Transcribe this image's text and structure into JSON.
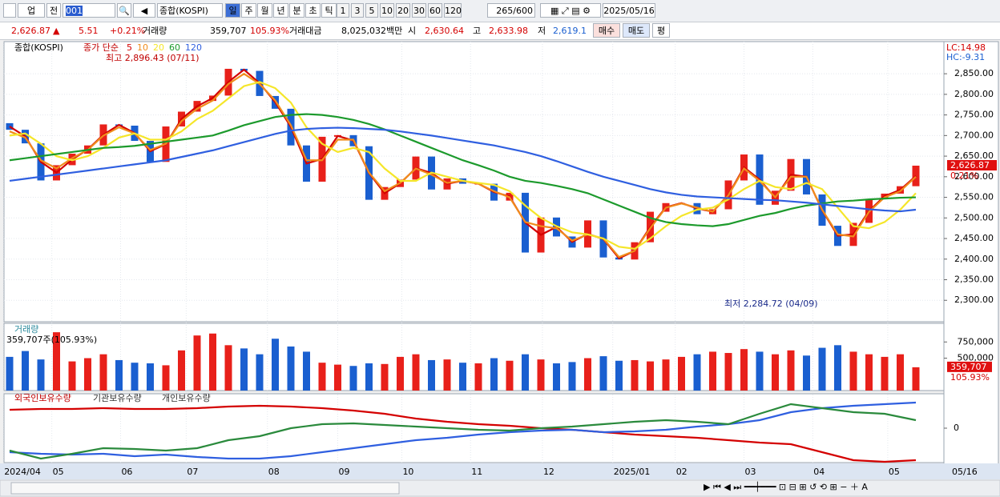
{
  "toolbar": {
    "market": "업",
    "prev": "전",
    "code": "001",
    "name": "종합(KOSPI)",
    "periods": [
      "일",
      "주",
      "월",
      "년",
      "분",
      "초",
      "틱"
    ],
    "minutes": [
      "1",
      "3",
      "5",
      "10",
      "20",
      "30",
      "60",
      "120"
    ],
    "count": "265/600",
    "date": "2025/05/16"
  },
  "quote": {
    "price": "2,626.87",
    "change": "5.51",
    "rate": "+0.21%",
    "volume_label": "거래량",
    "volume": "359,707",
    "volume_rate": "105.93%",
    "amount_label": "거래대금",
    "amount": "8,025,032백만",
    "open_label": "시",
    "open": "2,630.64",
    "high_label": "고",
    "high": "2,633.98",
    "low_label": "저",
    "low": "2,619.1",
    "buy": "매수",
    "sell": "매도",
    "avg": "평"
  },
  "chart_data": [
    {
      "type": "candlestick",
      "title": "종합(KOSPI)",
      "ma_label": "종가 단순",
      "up_color": "#e8201a",
      "down_color": "#1a5fd0",
      "open": [
        2730,
        2714,
        2681,
        2591,
        2628,
        2656,
        2676,
        2727,
        2724,
        2687,
        2636,
        2722,
        2758,
        2784,
        2797,
        2862,
        2857,
        2796,
        2765,
        2676,
        2588,
        2697,
        2701,
        2674,
        2544,
        2575,
        2593,
        2649,
        2569,
        2596,
        2583,
        2583,
        2542,
        2561,
        2416,
        2501,
        2455,
        2428,
        2494,
        2404,
        2399,
        2441,
        2515,
        2536,
        2536,
        2509,
        2521,
        2591,
        2654,
        2532,
        2566,
        2643,
        2557,
        2481,
        2432,
        2488,
        2546,
        2559,
        2577
      ],
      "close": [
        2714,
        2681,
        2591,
        2628,
        2656,
        2676,
        2727,
        2724,
        2687,
        2636,
        2722,
        2758,
        2784,
        2797,
        2862,
        2857,
        2796,
        2765,
        2676,
        2588,
        2697,
        2701,
        2674,
        2544,
        2575,
        2593,
        2649,
        2569,
        2596,
        2583,
        2583,
        2542,
        2561,
        2416,
        2501,
        2455,
        2428,
        2494,
        2404,
        2399,
        2441,
        2515,
        2536,
        2536,
        2509,
        2521,
        2591,
        2654,
        2532,
        2566,
        2643,
        2557,
        2481,
        2432,
        2488,
        2546,
        2559,
        2577,
        2626.87
      ],
      "series": [
        {
          "name": "5",
          "color": "#d40000",
          "values": [
            2722,
            2698,
            2636,
            2610,
            2642,
            2666,
            2702,
            2726,
            2706,
            2662,
            2679,
            2740,
            2771,
            2791,
            2830,
            2860,
            2827,
            2781,
            2721,
            2632,
            2643,
            2699,
            2688,
            2609,
            2560,
            2584,
            2621,
            2609,
            2583,
            2590,
            2583,
            2563,
            2552,
            2489,
            2459,
            2478,
            2442,
            2461,
            2449,
            2402,
            2420,
            2478,
            2526,
            2536,
            2523,
            2515,
            2556,
            2623,
            2593,
            2549,
            2605,
            2600,
            2519,
            2457,
            2460,
            2517,
            2553,
            2568,
            2602
          ]
        },
        {
          "name": "10",
          "color": "#f08c1c",
          "values": [
            2710,
            2695,
            2640,
            2620,
            2645,
            2665,
            2700,
            2720,
            2705,
            2665,
            2680,
            2735,
            2765,
            2785,
            2825,
            2850,
            2825,
            2785,
            2725,
            2640,
            2640,
            2690,
            2690,
            2610,
            2565,
            2585,
            2620,
            2605,
            2585,
            2590,
            2583,
            2565,
            2550,
            2490,
            2480,
            2475,
            2445,
            2460,
            2450,
            2405,
            2420,
            2475,
            2525,
            2535,
            2525,
            2515,
            2555,
            2620,
            2590,
            2550,
            2600,
            2600,
            2520,
            2460,
            2455,
            2515,
            2550,
            2565,
            2600
          ]
        },
        {
          "name": "20",
          "color": "#f5e62a",
          "values": [
            2700,
            2705,
            2680,
            2650,
            2640,
            2650,
            2670,
            2695,
            2705,
            2690,
            2690,
            2710,
            2740,
            2760,
            2790,
            2820,
            2830,
            2815,
            2780,
            2720,
            2680,
            2660,
            2670,
            2660,
            2620,
            2590,
            2590,
            2610,
            2600,
            2590,
            2585,
            2580,
            2565,
            2530,
            2500,
            2480,
            2465,
            2460,
            2450,
            2430,
            2425,
            2450,
            2480,
            2505,
            2520,
            2525,
            2545,
            2570,
            2590,
            2575,
            2570,
            2585,
            2570,
            2525,
            2480,
            2475,
            2490,
            2520,
            2560
          ]
        },
        {
          "name": "60",
          "color": "#1c9a2c",
          "values": [
            2640,
            2645,
            2650,
            2655,
            2660,
            2665,
            2670,
            2672,
            2675,
            2680,
            2685,
            2690,
            2695,
            2700,
            2712,
            2725,
            2735,
            2745,
            2750,
            2752,
            2750,
            2745,
            2738,
            2728,
            2715,
            2700,
            2685,
            2670,
            2655,
            2640,
            2628,
            2615,
            2600,
            2590,
            2585,
            2578,
            2570,
            2560,
            2545,
            2530,
            2515,
            2500,
            2490,
            2485,
            2482,
            2480,
            2485,
            2495,
            2505,
            2512,
            2522,
            2530,
            2535,
            2540,
            2542,
            2545,
            2547,
            2549,
            2550
          ]
        },
        {
          "name": "120",
          "color": "#2f5fe0",
          "values": [
            2590,
            2595,
            2600,
            2605,
            2610,
            2615,
            2620,
            2625,
            2630,
            2635,
            2640,
            2648,
            2656,
            2664,
            2674,
            2684,
            2694,
            2704,
            2712,
            2716,
            2718,
            2719,
            2718,
            2716,
            2714,
            2710,
            2705,
            2700,
            2694,
            2688,
            2682,
            2676,
            2668,
            2660,
            2650,
            2638,
            2625,
            2612,
            2600,
            2590,
            2580,
            2570,
            2562,
            2556,
            2552,
            2550,
            2548,
            2546,
            2544,
            2543,
            2540,
            2537,
            2533,
            2529,
            2525,
            2521,
            2518,
            2516,
            2520
          ]
        }
      ],
      "ylim": [
        2248,
        2928
      ],
      "yticks": [
        {
          "value": 2300,
          "label": "2,300.00"
        },
        {
          "value": 2350,
          "label": "2,350.00"
        },
        {
          "value": 2400,
          "label": "2,400.00"
        },
        {
          "value": 2450,
          "label": "2,450.00"
        },
        {
          "value": 2500,
          "label": "2,500.00"
        },
        {
          "value": 2550,
          "label": "2,550.00"
        },
        {
          "value": 2600,
          "label": "2,600.00"
        },
        {
          "value": 2650,
          "label": "2,650.00"
        },
        {
          "value": 2700,
          "label": "2,700.00"
        },
        {
          "value": 2750,
          "label": "2,750.00"
        },
        {
          "value": 2800,
          "label": "2,800.00"
        },
        {
          "value": 2850,
          "label": "2,850.00"
        }
      ],
      "last_label": "2,626.87",
      "last_rate": "0.21%",
      "lc": "LC:14.98",
      "hc": "HC:-9.31",
      "annotations": [
        "최고 2,896.43 (07/11)",
        "최저 2,284.72 (04/09)"
      ],
      "xticks": [
        {
          "value": -0.4,
          "label": "2024/04"
        },
        {
          "value": 2.7,
          "label": "05"
        },
        {
          "value": 7.1,
          "label": "06"
        },
        {
          "value": 11.3,
          "label": "07"
        },
        {
          "value": 16.5,
          "label": "08"
        },
        {
          "value": 21,
          "label": "09"
        },
        {
          "value": 25.1,
          "label": "10"
        },
        {
          "value": 29.5,
          "label": "11"
        },
        {
          "value": 34.1,
          "label": "12"
        },
        {
          "value": 38.6,
          "label": "2025/01"
        },
        {
          "value": 42.6,
          "label": "02"
        },
        {
          "value": 47,
          "label": "03"
        },
        {
          "value": 51.4,
          "label": "04"
        },
        {
          "value": 56.2,
          "label": "05"
        }
      ],
      "end_label": "05/16"
    },
    {
      "type": "bar",
      "title": "거래량",
      "subtitle": "359,707주(105.93%)",
      "values": [
        520000,
        610000,
        480000,
        900000,
        450000,
        500000,
        560000,
        470000,
        430000,
        420000,
        390000,
        620000,
        850000,
        880000,
        700000,
        650000,
        560000,
        800000,
        680000,
        600000,
        430000,
        400000,
        380000,
        420000,
        410000,
        520000,
        560000,
        470000,
        480000,
        430000,
        420000,
        500000,
        460000,
        560000,
        480000,
        420000,
        440000,
        500000,
        530000,
        460000,
        470000,
        450000,
        480000,
        520000,
        560000,
        600000,
        580000,
        640000,
        600000,
        560000,
        620000,
        540000,
        660000,
        700000,
        600000,
        560000,
        520000,
        560000,
        359707
      ],
      "ylim": [
        0,
        1037500
      ],
      "yticks": [
        {
          "value": 500000,
          "label": "500,000"
        },
        {
          "value": 750000,
          "label": "750,000"
        }
      ],
      "last_label": "359,707",
      "last_rate": "105.93%"
    },
    {
      "type": "line",
      "x": [
        0,
        2,
        4,
        6,
        8,
        10,
        12,
        14,
        16,
        18,
        20,
        22,
        24,
        26,
        28,
        30,
        32,
        34,
        36,
        38,
        40,
        42,
        44,
        46,
        48,
        50,
        52,
        54,
        56,
        58
      ],
      "series": [
        {
          "name": "외국인보유수량",
          "color": "#d40000",
          "values": [
            23,
            24,
            24,
            25,
            24,
            24,
            25,
            27,
            28,
            27,
            25,
            22,
            18,
            12,
            8,
            5,
            3,
            0,
            -2,
            -5,
            -8,
            -10,
            -12,
            -15,
            -18,
            -20,
            -30,
            -40,
            -42,
            -40
          ]
        },
        {
          "name": "기관보유수량",
          "color": "#2f5fe0",
          "values": [
            -30,
            -32,
            -33,
            -32,
            -35,
            -33,
            -36,
            -38,
            -38,
            -35,
            -30,
            -25,
            -20,
            -15,
            -12,
            -8,
            -5,
            -3,
            -2,
            -5,
            -4,
            -2,
            2,
            5,
            10,
            20,
            25,
            28,
            30,
            32
          ]
        },
        {
          "name": "개인보유수량",
          "color": "#2a8a3c",
          "values": [
            -28,
            -38,
            -32,
            -25,
            -26,
            -28,
            -25,
            -15,
            -10,
            0,
            5,
            6,
            4,
            2,
            0,
            -2,
            -3,
            0,
            2,
            5,
            8,
            10,
            8,
            5,
            18,
            30,
            25,
            20,
            18,
            10
          ]
        }
      ],
      "ylim": [
        -43,
        43
      ],
      "yticks": [
        0
      ]
    }
  ]
}
